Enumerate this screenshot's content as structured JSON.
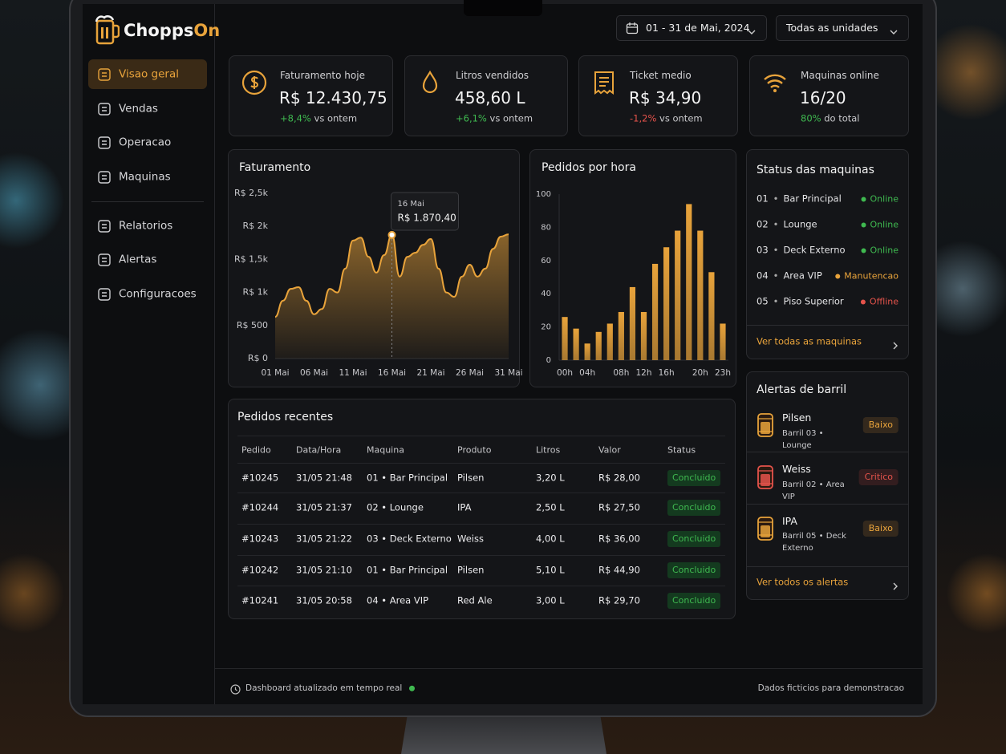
{
  "brand": {
    "name_main": "Chopps",
    "name_accent": "On"
  },
  "nav": {
    "primary": [
      "Visao geral",
      "Vendas",
      "Operacao",
      "Maquinas"
    ],
    "secondary": [
      "Relatorios",
      "Alertas",
      "Configuracoes"
    ],
    "active": "Visao geral"
  },
  "header": {
    "date_range": "01 - 31 de Mai, 2024",
    "unit_filter": "Todas as unidades"
  },
  "kpis": [
    {
      "label": "Faturamento hoje",
      "value": "R$ 12.430,75",
      "delta": "+8,4%",
      "delta_note": "vs ontem",
      "delta_color": "#3fb950"
    },
    {
      "label": "Litros vendidos",
      "value": "458,60 L",
      "delta": "+6,1%",
      "delta_note": "vs ontem",
      "delta_color": "#3fb950"
    },
    {
      "label": "Ticket medio",
      "value": "R$ 34,90",
      "delta": "-1,2%",
      "delta_note": "vs ontem",
      "delta_color": "#e5534b"
    },
    {
      "label": "Maquinas online",
      "value": "16/20",
      "delta": "80%",
      "delta_note": "do total",
      "delta_color": "#3fb950"
    }
  ],
  "chart_data": [
    {
      "type": "area",
      "title": "Faturamento",
      "categories": [
        "01 Mai",
        null,
        null,
        null,
        null,
        "06 Mai",
        null,
        null,
        null,
        null,
        "11 Mai",
        null,
        null,
        null,
        null,
        "16 Mai",
        null,
        null,
        null,
        null,
        "21 Mai",
        null,
        null,
        null,
        null,
        "26 Mai",
        null,
        null,
        null,
        null,
        "31 Mai"
      ],
      "values": [
        630,
        875,
        1055,
        1080,
        875,
        670,
        750,
        1055,
        1000,
        1360,
        1785,
        1830,
        1540,
        1300,
        1565,
        1870.4,
        1240,
        1540,
        1600,
        1720,
        1810,
        1360,
        1000,
        935,
        1240,
        1420,
        1240,
        1360,
        1660,
        1845,
        1880
      ],
      "color": "#e8a33b",
      "ylim": [
        0,
        2500
      ],
      "yticks": [
        {
          "value": 0,
          "label": "R$ 0"
        },
        {
          "value": 500,
          "label": "R$ 500"
        },
        {
          "value": 1000,
          "label": "R$ 1k"
        },
        {
          "value": 1500,
          "label": "R$ 1,5k"
        },
        {
          "value": 2000,
          "label": "R$ 2k"
        },
        {
          "value": 2500,
          "label": "R$ 2,5k"
        }
      ],
      "grid": false,
      "tooltip": {
        "label": "16 Mai",
        "value_label": "R$ 1.870,40"
      }
    },
    {
      "type": "bar",
      "title": "Pedidos por hora",
      "categories": [
        "00h",
        null,
        "04h",
        null,
        null,
        "08h",
        null,
        "12h",
        null,
        "16h",
        null,
        null,
        "20h",
        null,
        "23h"
      ],
      "values": [
        26,
        19,
        10,
        17,
        22,
        29,
        44,
        29,
        58,
        68,
        78,
        94,
        78,
        53,
        22
      ],
      "color": "#e8a33b",
      "ylim": [
        0,
        100
      ],
      "yticks": [
        0,
        20,
        40,
        60,
        80,
        100
      ],
      "grid": false
    }
  ],
  "machines": {
    "title": "Status das maquinas",
    "items": [
      {
        "id": "01",
        "name": "Bar Principal",
        "status": "Online",
        "color": "#3fb950"
      },
      {
        "id": "02",
        "name": "Lounge",
        "status": "Online",
        "color": "#3fb950"
      },
      {
        "id": "03",
        "name": "Deck Externo",
        "status": "Online",
        "color": "#3fb950"
      },
      {
        "id": "04",
        "name": "Area VIP",
        "status": "Manutencao",
        "color": "#e8a33b"
      },
      {
        "id": "05",
        "name": "Piso Superior",
        "status": "Offline",
        "color": "#e5534b"
      }
    ],
    "link": "Ver todas as maquinas"
  },
  "alerts": {
    "title": "Alertas de barril",
    "items": [
      {
        "beer": "Pilsen",
        "detail": "Barril 03 • Lounge",
        "level": "Baixo",
        "color": "#e8a33b"
      },
      {
        "beer": "Weiss",
        "detail": "Barril 02 • Area VIP",
        "level": "Critico",
        "color": "#e5534b"
      },
      {
        "beer": "IPA",
        "detail": "Barril 05 • Deck Externo",
        "level": "Baixo",
        "color": "#e8a33b"
      }
    ],
    "link": "Ver todos os alertas"
  },
  "table": {
    "title": "Pedidos recentes",
    "columns": [
      "Pedido",
      "Data/Hora",
      "Maquina",
      "Produto",
      "Litros",
      "Valor",
      "Status"
    ],
    "rows": [
      [
        "#10245",
        "31/05 21:48",
        "01 • Bar Principal",
        "Pilsen",
        "3,20 L",
        "R$ 28,00",
        "Concluido"
      ],
      [
        "#10244",
        "31/05 21:37",
        "02 • Lounge",
        "IPA",
        "2,50 L",
        "R$ 27,50",
        "Concluido"
      ],
      [
        "#10243",
        "31/05 21:22",
        "03 • Deck Externo",
        "Weiss",
        "4,00 L",
        "R$ 36,00",
        "Concluido"
      ],
      [
        "#10242",
        "31/05 21:10",
        "01 • Bar Principal",
        "Pilsen",
        "5,10 L",
        "R$ 44,90",
        "Concluido"
      ],
      [
        "#10241",
        "31/05 20:58",
        "04 • Area VIP",
        "Red Ale",
        "3,00 L",
        "R$ 29,70",
        "Concluido"
      ]
    ]
  },
  "footer": {
    "status": "Dashboard atualizado em tempo real",
    "note": "Dados ficticios para demonstracao"
  }
}
